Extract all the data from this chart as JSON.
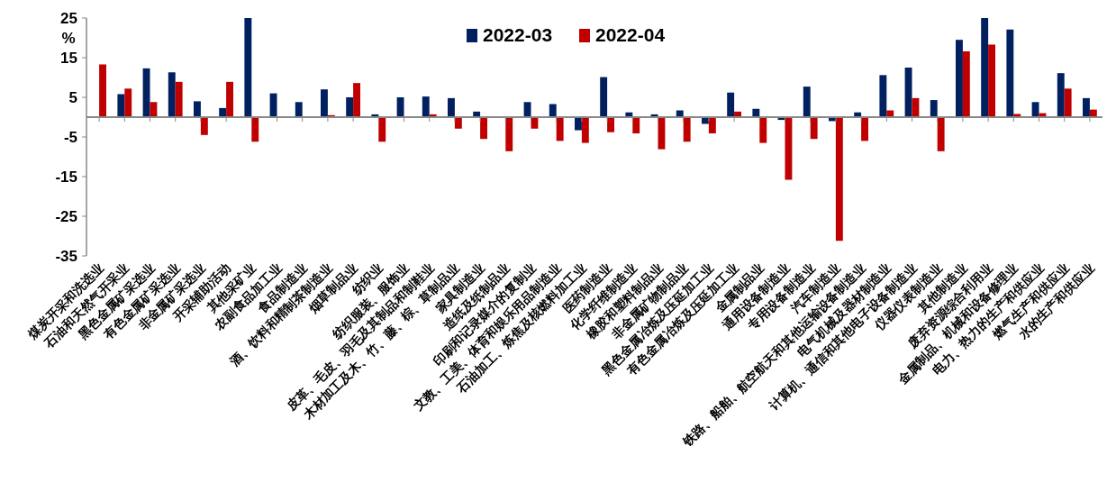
{
  "chart_data": {
    "type": "bar",
    "ylabel": "%",
    "ylim": [
      -35,
      25
    ],
    "yticks": [
      -35,
      -25,
      -15,
      -5,
      5,
      15,
      25
    ],
    "grid": false,
    "legend": "top",
    "categories": [
      "煤炭开采和洗选业",
      "石油和天然气开采业",
      "黑色金属矿采选业",
      "有色金属矿采选业",
      "非金属矿采选业",
      "开采辅助活动",
      "其他采矿业",
      "农副食品加工业",
      "食品制造业",
      "酒、饮料和精制茶制造业",
      "烟草制品业",
      "纺织业",
      "纺织服装、服饰业",
      "皮革、毛皮、羽毛及其制品和制鞋业",
      "木材加工及木、竹、藤、棕、草制品业",
      "家具制造业",
      "造纸及纸制品业",
      "印刷和记录媒介的复制业",
      "文教、工美、体育和娱乐用品制造业",
      "石油加工、炼焦及核燃料加工业",
      "医药制造业",
      "化学纤维制造业",
      "橡胶和塑料制品业",
      "非金属矿物制品业",
      "黑色金属冶炼及压延加工业",
      "有色金属冶炼及压延加工业",
      "金属制品业",
      "通用设备制造业",
      "专用设备制造业",
      "汽车制造业",
      "铁路、船舶、航空航天和其他运输设备制造业",
      "电气机械及器材制造业",
      "计算机、通信和其他电子设备制造业",
      "仪器仪表制造业",
      "其他制造业",
      "废弃资源综合利用业",
      "金属制品、机械和设备修理业",
      "电力、热力的生产和供应业",
      "燃气生产和供应业",
      "水的生产和供应业"
    ],
    "series": [
      {
        "name": "2022-03",
        "color": "#002060",
        "values": [
          null,
          5.8,
          12.3,
          11.3,
          4.0,
          2.3,
          25,
          6.0,
          3.8,
          7.0,
          5.0,
          0.7,
          5.0,
          5.2,
          4.8,
          1.4,
          null,
          3.8,
          3.3,
          -3.3,
          10.1,
          1.2,
          0.7,
          1.7,
          -1.7,
          6.2,
          2.1,
          -0.7,
          7.7,
          -1.0,
          1.2,
          10.6,
          12.5,
          4.3,
          19.5,
          25,
          22.1,
          3.8,
          11.1,
          4.8
        ]
      },
      {
        "name": "2022-04",
        "color": "#c00000",
        "values": [
          13.3,
          7.2,
          3.8,
          8.9,
          -4.5,
          8.9,
          -6.2,
          null,
          null,
          0.5,
          8.6,
          -6.2,
          null,
          0.7,
          -2.9,
          -5.5,
          -8.6,
          -2.9,
          -6.0,
          -6.5,
          -3.8,
          -4.1,
          -8.1,
          -6.2,
          -4.1,
          1.4,
          -6.5,
          -15.8,
          -5.5,
          -31.2,
          -6.0,
          1.7,
          4.8,
          -8.6,
          16.6,
          18.3,
          0.8,
          1.0,
          7.2,
          1.9
        ]
      }
    ]
  }
}
